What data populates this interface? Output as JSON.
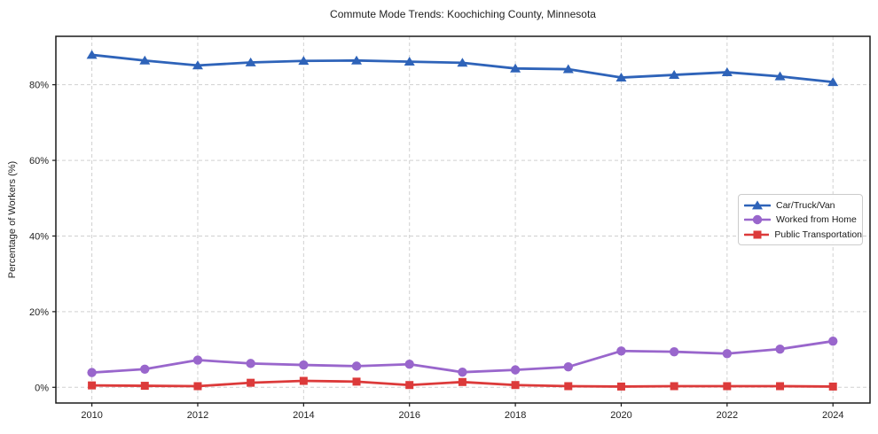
{
  "title": "Commute Mode Trends: Koochiching County, Minnesota",
  "chart_data": {
    "type": "line",
    "title": "Commute Mode Trends: Koochiching County, Minnesota",
    "xlabel": "",
    "ylabel": "Percentage of Workers (%)",
    "x": [
      2010,
      2011,
      2012,
      2013,
      2014,
      2015,
      2016,
      2017,
      2018,
      2019,
      2020,
      2021,
      2022,
      2023,
      2024
    ],
    "x_ticks": [
      2010,
      2012,
      2014,
      2016,
      2018,
      2020,
      2022,
      2024
    ],
    "x_tick_labels": [
      "2010",
      "2012",
      "2014",
      "2016",
      "2018",
      "2020",
      "2022",
      "2024"
    ],
    "y_ticks": [
      0,
      20,
      40,
      60,
      80
    ],
    "y_tick_labels": [
      "0%",
      "20%",
      "40%",
      "60%",
      "80%"
    ],
    "xlim": [
      2009.32,
      2024.7
    ],
    "ylim": [
      -4.15,
      92.8
    ],
    "grid": true,
    "grid_style": "dashed",
    "legend_position": "center-right",
    "series": [
      {
        "name": "Car/Truck/Van",
        "color": "#2e63b9",
        "marker": "triangle",
        "values": [
          87.9,
          86.4,
          85.1,
          85.9,
          86.3,
          86.4,
          86.1,
          85.8,
          84.3,
          84.1,
          81.9,
          82.6,
          83.3,
          82.2,
          80.7
        ]
      },
      {
        "name": "Worked from Home",
        "color": "#9966cc",
        "marker": "circle",
        "values": [
          3.9,
          4.8,
          7.2,
          6.3,
          5.9,
          5.6,
          6.1,
          4.0,
          4.6,
          5.4,
          9.6,
          9.4,
          8.9,
          10.1,
          12.2
        ]
      },
      {
        "name": "Public Transportation",
        "color": "#dc3a3a",
        "marker": "square",
        "values": [
          0.5,
          0.4,
          0.3,
          1.2,
          1.7,
          1.5,
          0.6,
          1.4,
          0.6,
          0.3,
          0.2,
          0.3,
          0.3,
          0.3,
          0.2
        ]
      }
    ]
  },
  "style": {
    "grid_color": "#d0d0d0",
    "spine_color": "#1a1a1a",
    "tick_label_color": "#1f1f1f",
    "background": "#ffffff"
  }
}
